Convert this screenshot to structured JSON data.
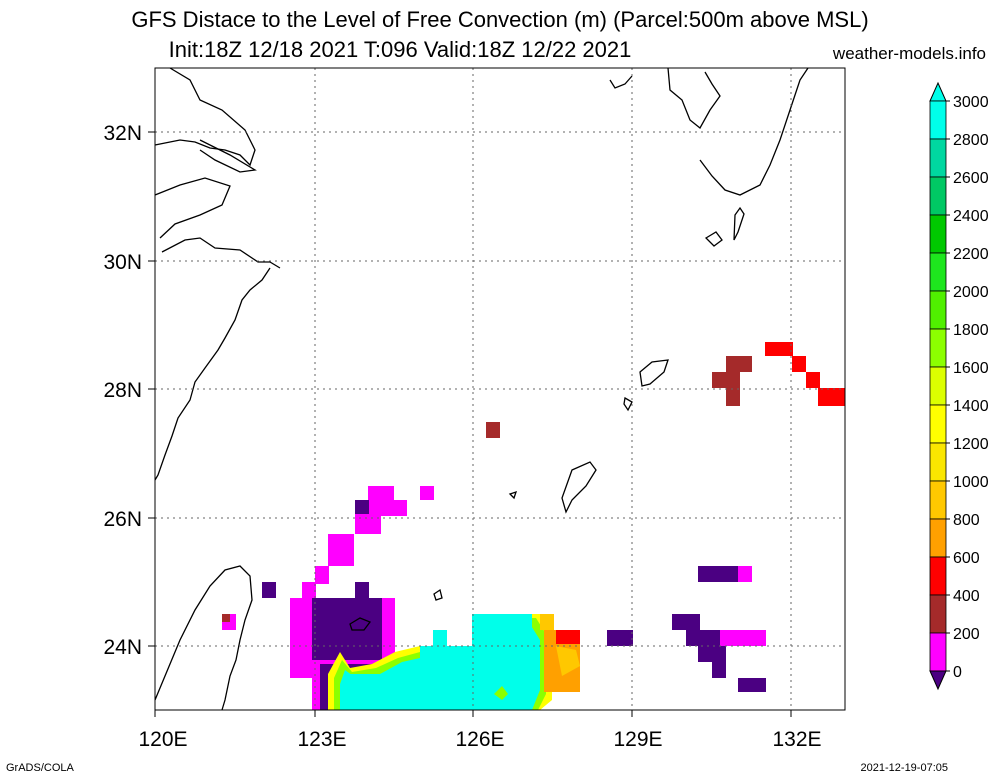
{
  "title_line1": "GFS Distace to the Level of Free Convection (m) (Parcel:500m above MSL)",
  "title_line2": "Init:18Z 12/18 2021 T:096 Valid:18Z 12/22 2021",
  "site": "weather-models.info",
  "footer_left": "GrADS/COLA",
  "footer_right": "2021-12-19-07:05",
  "map": {
    "lon_labels": [
      "120E",
      "123E",
      "126E",
      "129E",
      "132E"
    ],
    "lat_labels": [
      "32N",
      "30N",
      "28N",
      "26N",
      "24N"
    ],
    "lon_range": [
      120,
      133
    ],
    "lat_range": [
      23,
      33
    ],
    "gridlines": "dotted"
  },
  "colorbar": {
    "labels": [
      "3000",
      "2800",
      "2600",
      "2400",
      "2200",
      "2000",
      "1800",
      "1600",
      "1400",
      "1200",
      "1000",
      "800",
      "600",
      "400",
      "200",
      "0"
    ],
    "colors": [
      "#00ffea",
      "#00d7a0",
      "#00c864",
      "#00c800",
      "#1ee61e",
      "#50f000",
      "#8cff00",
      "#dcff00",
      "#ffff00",
      "#fae600",
      "#ffc800",
      "#ffa000",
      "#ff0000",
      "#a52a2a",
      "#ff00ff",
      "#4b0082"
    ]
  }
}
